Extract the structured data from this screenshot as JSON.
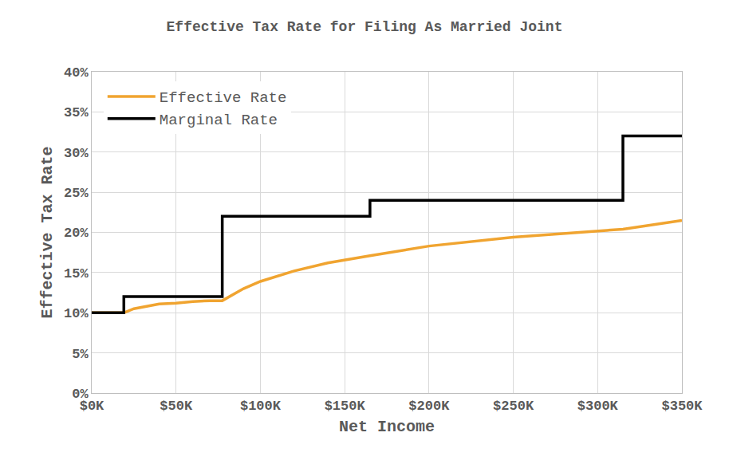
{
  "chart_data": {
    "type": "line",
    "title": "Effective Tax Rate for Filing As Married Joint",
    "x_label": "Net Income",
    "y_label": "Effective Tax Rate",
    "series": [
      {
        "name": "Effective Rate",
        "color": "#f0a430",
        "line_style": "solid",
        "x": [
          0,
          10000,
          19050,
          25000,
          30000,
          40000,
          50000,
          60000,
          70000,
          77400,
          90000,
          100000,
          120000,
          140000,
          165000,
          200000,
          250000,
          300000,
          315000,
          350000
        ],
        "values": [
          10,
          10,
          10,
          10.5,
          10.7,
          11.1,
          11.2,
          11.4,
          11.5,
          11.5,
          13,
          13.9,
          15.2,
          16.2,
          17.1,
          18.3,
          19.4,
          20.2,
          20.4,
          21.5
        ]
      },
      {
        "name": "Marginal Rate",
        "color": "#000000",
        "line_style": "step",
        "x": [
          0,
          19050,
          77400,
          165000,
          315000,
          350000
        ],
        "values": [
          10,
          12,
          22,
          24,
          32,
          32
        ]
      }
    ],
    "xlim": [
      0,
      350000
    ],
    "xticks": [
      {
        "value": 0,
        "label": "$0K"
      },
      {
        "value": 50000,
        "label": "$50K"
      },
      {
        "value": 100000,
        "label": "$100K"
      },
      {
        "value": 150000,
        "label": "$150K"
      },
      {
        "value": 200000,
        "label": "$200K"
      },
      {
        "value": 250000,
        "label": "$250K"
      },
      {
        "value": 300000,
        "label": "$300K"
      },
      {
        "value": 350000,
        "label": "$350K"
      }
    ],
    "ylim": [
      0,
      40
    ],
    "yticks": [
      {
        "value": 0,
        "label": "0%"
      },
      {
        "value": 5,
        "label": "5%"
      },
      {
        "value": 10,
        "label": "10%"
      },
      {
        "value": 15,
        "label": "15%"
      },
      {
        "value": 20,
        "label": "20%"
      },
      {
        "value": 25,
        "label": "25%"
      },
      {
        "value": 30,
        "label": "30%"
      },
      {
        "value": 35,
        "label": "35%"
      },
      {
        "value": 40,
        "label": "40%"
      }
    ],
    "grid": true,
    "legend": "upper left"
  }
}
